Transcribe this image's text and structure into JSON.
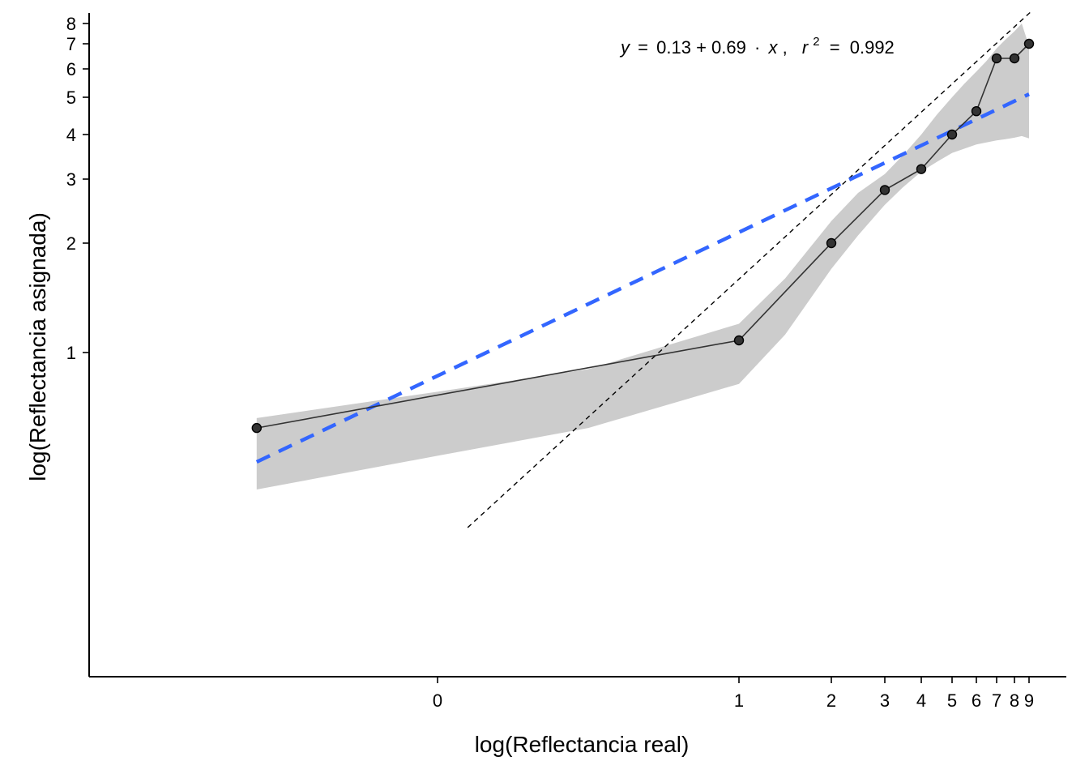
{
  "chart_data": {
    "type": "line",
    "title": "",
    "xlabel": "log(Reflectancia real)",
    "ylabel": "log(Reflectancia asignada)",
    "x_ticks": [
      0,
      1,
      2,
      3,
      4,
      5,
      6,
      7,
      8,
      9
    ],
    "y_ticks": [
      1,
      2,
      3,
      4,
      5,
      6,
      7,
      8
    ],
    "xlim": [
      -0.5,
      9.5
    ],
    "ylim": [
      0.33,
      8.4
    ],
    "grid": false,
    "legend": "none",
    "annotation": {
      "y_var": "y",
      "equals": "=",
      "intercept": "0.13",
      "plus": "+",
      "slope": "0.69",
      "dot": "·",
      "x_var": "x",
      "comma": ",",
      "r_var": "r",
      "r_exp": "2",
      "r_equals": "=",
      "r_value": "0.992"
    },
    "series": [
      {
        "x": [
          -0.6,
          1,
          2,
          3,
          4,
          5,
          6,
          7,
          8,
          9
        ],
        "y": [
          0.62,
          1.08,
          2.0,
          2.8,
          3.2,
          4.0,
          4.6,
          6.4,
          6.4,
          7.0
        ],
        "color": "#333333"
      }
    ],
    "fit": {
      "intercept": 0.13,
      "slope": 0.69,
      "r_squared": 0.992,
      "color": "#3366FF",
      "band_color": "#CCCCCC"
    },
    "confidence_band": {
      "x": [
        -0.6,
        0,
        0.5,
        1,
        1.5,
        2,
        2.5,
        3,
        3.5,
        4,
        4.5,
        5,
        5.5,
        6,
        6.5,
        7,
        7.5,
        8,
        8.5,
        9
      ],
      "lower": [
        0.42,
        0.52,
        0.62,
        0.82,
        1.12,
        1.7,
        2.1,
        2.55,
        2.85,
        3.15,
        3.35,
        3.55,
        3.65,
        3.75,
        3.8,
        3.85,
        3.88,
        3.92,
        3.96,
        3.9
      ],
      "upper": [
        0.66,
        0.78,
        0.9,
        1.2,
        1.6,
        2.3,
        2.75,
        3.1,
        3.5,
        4.0,
        4.5,
        5.0,
        5.45,
        5.9,
        6.3,
        6.8,
        7.2,
        7.6,
        8.0,
        6.9
      ]
    },
    "identity_line": {
      "color": "#000000"
    }
  }
}
